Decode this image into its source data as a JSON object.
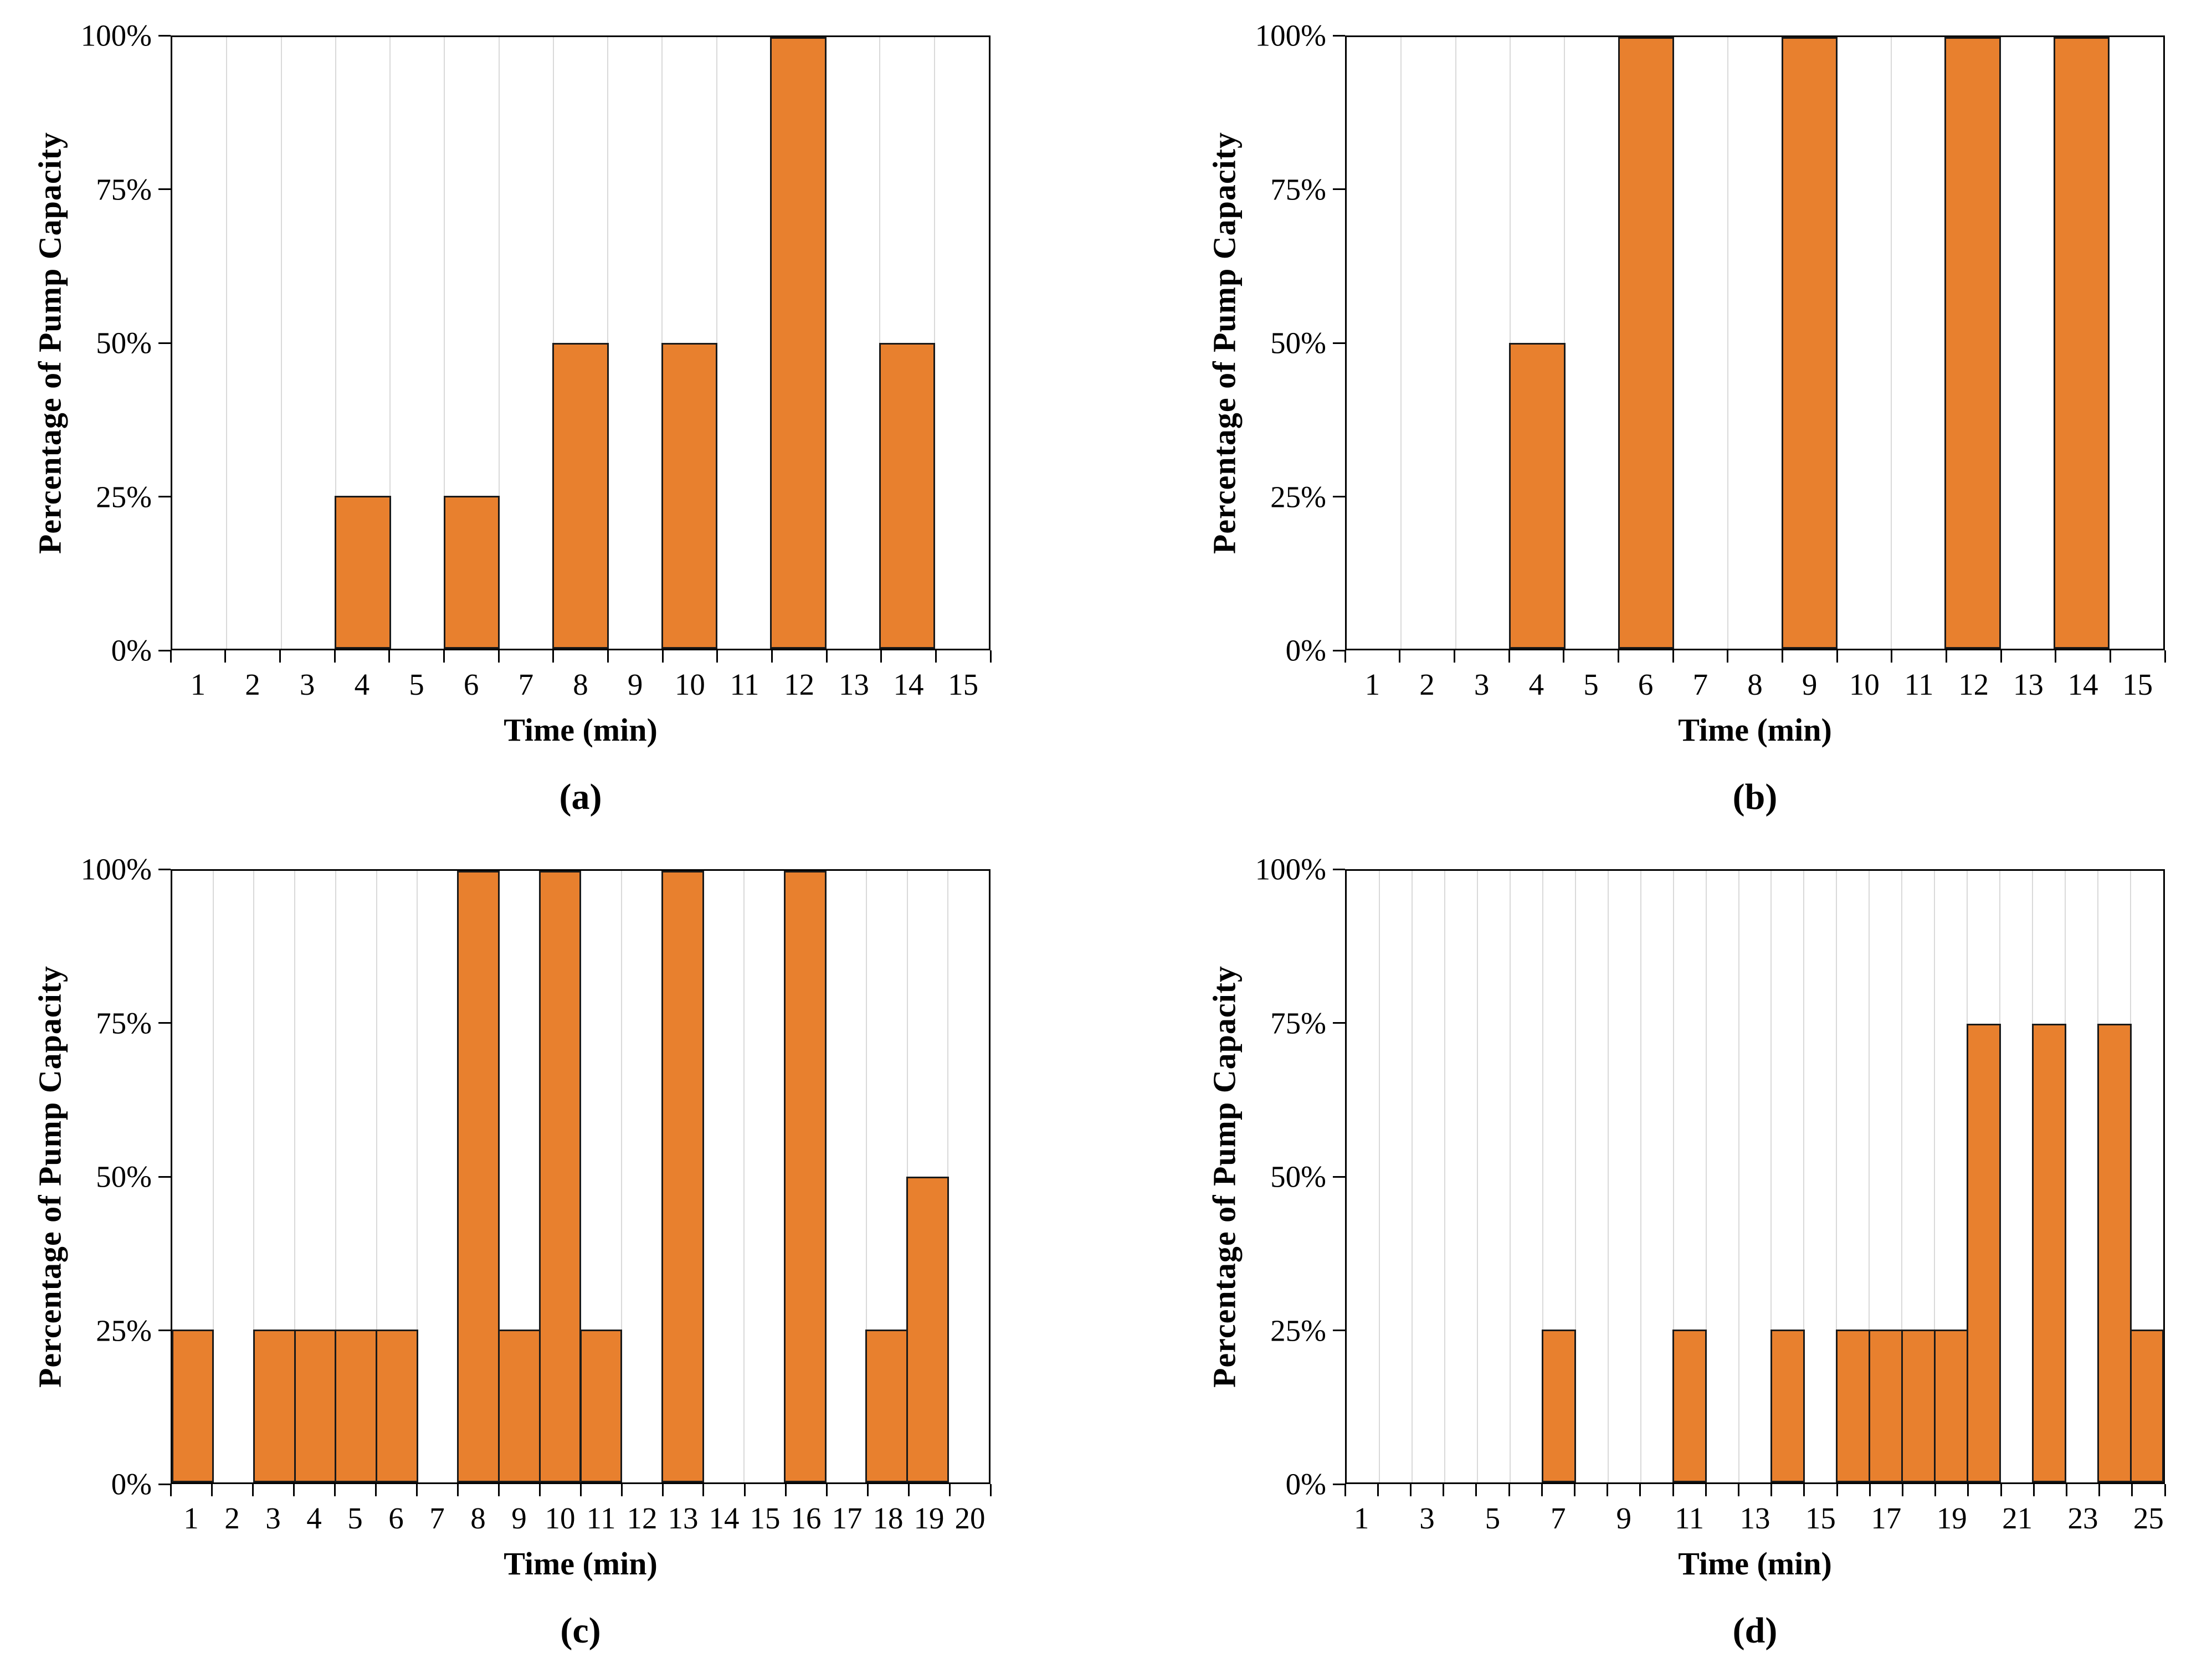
{
  "figure": {
    "bar_fill_color": "#E8802E",
    "bar_border_color": "#1A1A1A",
    "gridline_color": "#D9D9D9",
    "axis_color": "#000000"
  },
  "chart_data": [
    {
      "type": "bar",
      "panel_label": "(a)",
      "xlabel": "Time (min)",
      "ylabel": "Percentage of Pump Capacity",
      "x": [
        1,
        2,
        3,
        4,
        5,
        6,
        7,
        8,
        9,
        10,
        11,
        12,
        13,
        14,
        15
      ],
      "values": [
        0,
        0,
        0,
        25,
        0,
        25,
        0,
        50,
        0,
        50,
        0,
        100,
        0,
        50,
        0
      ],
      "ylim": [
        0,
        100
      ],
      "y_tick_values": [
        0,
        25,
        50,
        75,
        100
      ],
      "y_tick_labels": [
        "0%",
        "25%",
        "50%",
        "75%",
        "100%"
      ],
      "x_label_step": 1,
      "grid": "vertical-only",
      "legend": "none"
    },
    {
      "type": "bar",
      "panel_label": "(b)",
      "xlabel": "Time (min)",
      "ylabel": "Percentage of Pump Capacity",
      "x": [
        1,
        2,
        3,
        4,
        5,
        6,
        7,
        8,
        9,
        10,
        11,
        12,
        13,
        14,
        15
      ],
      "values": [
        0,
        0,
        0,
        50,
        0,
        100,
        0,
        0,
        100,
        0,
        0,
        100,
        0,
        100,
        0
      ],
      "ylim": [
        0,
        100
      ],
      "y_tick_values": [
        0,
        25,
        50,
        75,
        100
      ],
      "y_tick_labels": [
        "0%",
        "25%",
        "50%",
        "75%",
        "100%"
      ],
      "x_label_step": 1,
      "grid": "vertical-only",
      "legend": "none"
    },
    {
      "type": "bar",
      "panel_label": "(c)",
      "xlabel": "Time (min)",
      "ylabel": "Percentage of Pump Capacity",
      "x": [
        1,
        2,
        3,
        4,
        5,
        6,
        7,
        8,
        9,
        10,
        11,
        12,
        13,
        14,
        15,
        16,
        17,
        18,
        19,
        20
      ],
      "values": [
        25,
        0,
        25,
        25,
        25,
        25,
        0,
        100,
        25,
        100,
        25,
        0,
        100,
        0,
        0,
        100,
        0,
        25,
        50,
        0
      ],
      "ylim": [
        0,
        100
      ],
      "y_tick_values": [
        0,
        25,
        50,
        75,
        100
      ],
      "y_tick_labels": [
        "0%",
        "25%",
        "50%",
        "75%",
        "100%"
      ],
      "x_label_step": 1,
      "grid": "vertical-only",
      "legend": "none"
    },
    {
      "type": "bar",
      "panel_label": "(d)",
      "xlabel": "Time (min)",
      "ylabel": "Percentage of Pump Capacity",
      "x": [
        1,
        2,
        3,
        4,
        5,
        6,
        7,
        8,
        9,
        10,
        11,
        12,
        13,
        14,
        15,
        16,
        17,
        18,
        19,
        20,
        21,
        22,
        23,
        24,
        25
      ],
      "values": [
        0,
        0,
        0,
        0,
        0,
        0,
        25,
        0,
        0,
        0,
        25,
        0,
        0,
        25,
        0,
        25,
        25,
        25,
        25,
        75,
        0,
        75,
        0,
        75,
        25
      ],
      "ylim": [
        0,
        100
      ],
      "y_tick_values": [
        0,
        25,
        50,
        75,
        100
      ],
      "y_tick_labels": [
        "0%",
        "25%",
        "50%",
        "75%",
        "100%"
      ],
      "x_label_step": 2,
      "grid": "vertical-only",
      "legend": "none"
    }
  ]
}
